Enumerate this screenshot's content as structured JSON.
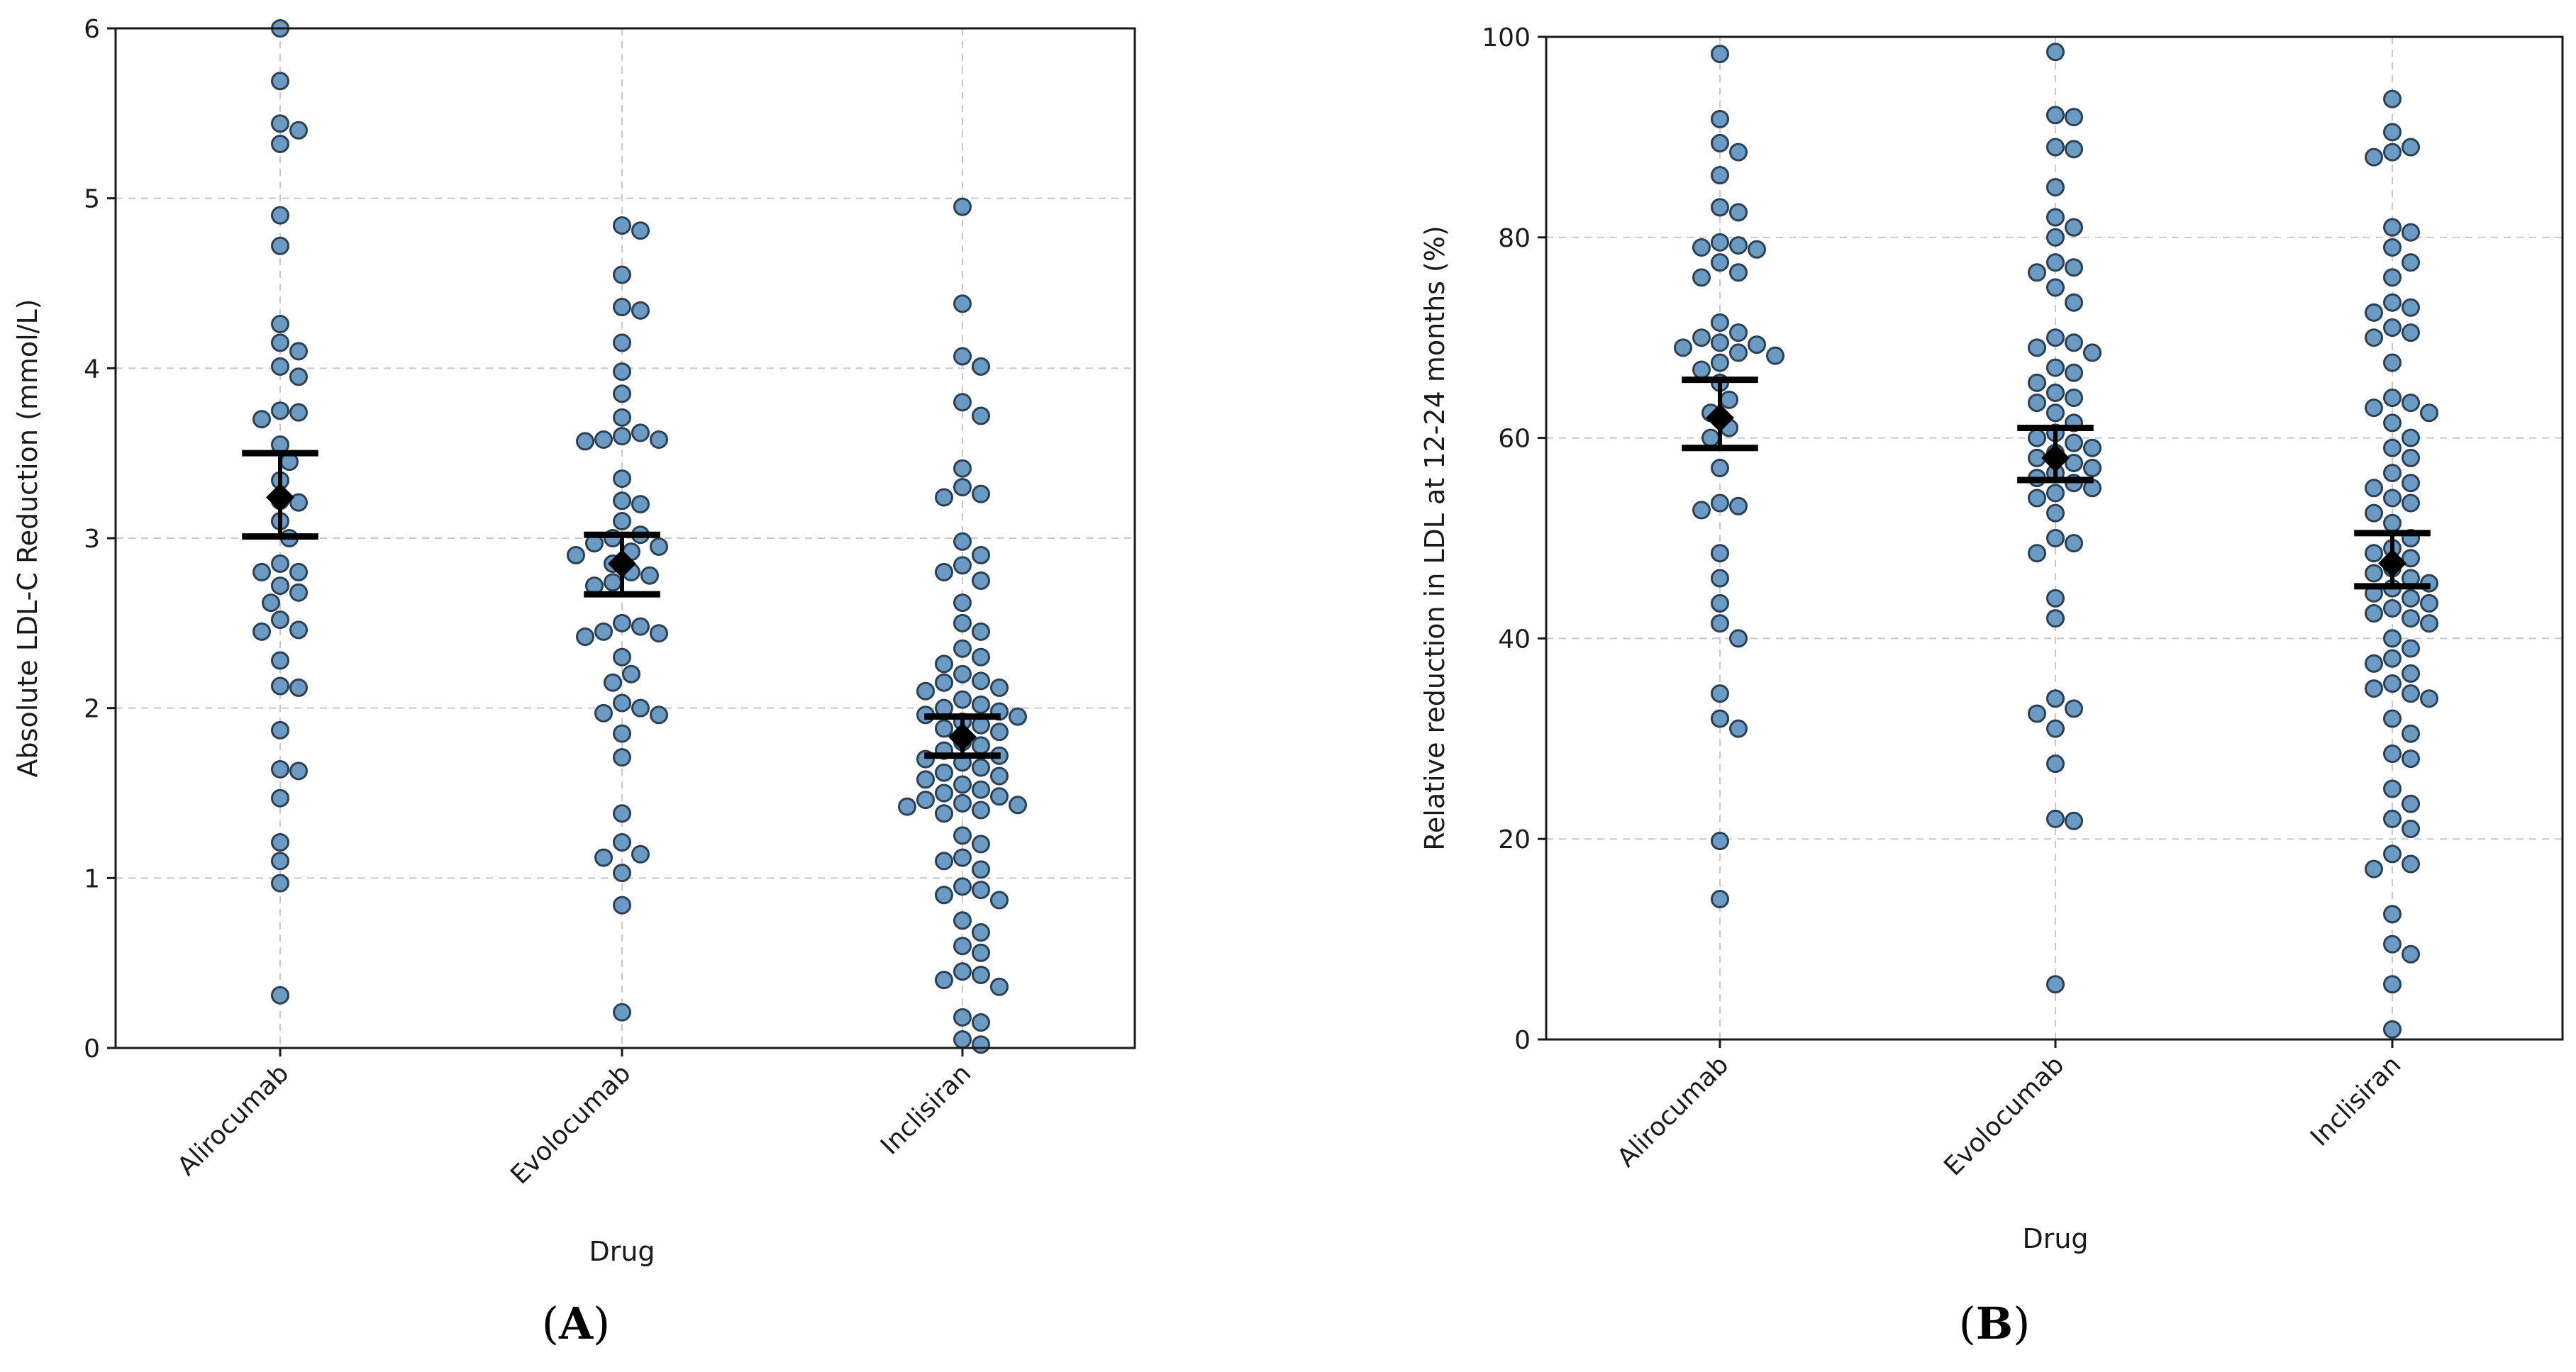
{
  "colors": {
    "point_fill": "#6b9bc3",
    "point_edge": "#2b3f55",
    "mean": "#000000"
  },
  "chart_data": [
    {
      "panel": "A",
      "type": "scatter",
      "subtype": "swarm",
      "xlabel": "Drug",
      "ylabel": "Absolute LDL-C Reduction (mmol/L)",
      "ylim": [
        0,
        6
      ],
      "yticks": [
        0,
        1,
        2,
        3,
        4,
        5,
        6
      ],
      "grid": true,
      "categories": [
        "Alirocumab",
        "Evolocumab",
        "Inclisiran"
      ],
      "series": [
        {
          "name": "Alirocumab",
          "mean": 3.24,
          "ci": [
            3.01,
            3.5
          ],
          "values": [
            6.0,
            5.69,
            5.44,
            5.4,
            5.32,
            4.9,
            4.72,
            4.26,
            4.15,
            4.1,
            4.01,
            3.95,
            3.75,
            3.74,
            3.7,
            3.55,
            3.45,
            3.34,
            3.22,
            3.21,
            3.1,
            3.0,
            2.85,
            2.8,
            2.8,
            2.72,
            2.68,
            2.62,
            2.52,
            2.46,
            2.45,
            2.28,
            2.13,
            2.12,
            1.87,
            1.64,
            1.63,
            1.47,
            1.21,
            1.1,
            0.97,
            0.31
          ]
        },
        {
          "name": "Evolocumab",
          "mean": 2.85,
          "ci": [
            2.67,
            3.02
          ],
          "values": [
            4.84,
            4.81,
            4.55,
            4.36,
            4.34,
            4.15,
            3.98,
            3.85,
            3.71,
            3.62,
            3.6,
            3.58,
            3.58,
            3.57,
            3.35,
            3.22,
            3.2,
            3.1,
            3.02,
            3.0,
            2.97,
            2.95,
            2.92,
            2.9,
            2.85,
            2.8,
            2.78,
            2.74,
            2.72,
            2.5,
            2.48,
            2.45,
            2.44,
            2.42,
            2.3,
            2.2,
            2.15,
            2.03,
            2.0,
            1.97,
            1.96,
            1.85,
            1.71,
            1.38,
            1.21,
            1.14,
            1.12,
            1.03,
            0.84,
            0.21
          ]
        },
        {
          "name": "Inclisiran",
          "mean": 1.83,
          "ci": [
            1.72,
            1.95
          ],
          "values": [
            4.95,
            4.38,
            4.07,
            4.01,
            3.8,
            3.72,
            3.41,
            3.3,
            3.26,
            3.24,
            2.98,
            2.9,
            2.84,
            2.8,
            2.75,
            2.62,
            2.5,
            2.45,
            2.35,
            2.3,
            2.26,
            2.2,
            2.16,
            2.15,
            2.12,
            2.1,
            2.05,
            2.02,
            2.0,
            1.98,
            1.96,
            1.95,
            1.92,
            1.9,
            1.88,
            1.86,
            1.8,
            1.78,
            1.75,
            1.72,
            1.7,
            1.68,
            1.65,
            1.62,
            1.6,
            1.58,
            1.55,
            1.52,
            1.5,
            1.48,
            1.46,
            1.44,
            1.43,
            1.42,
            1.4,
            1.38,
            1.25,
            1.2,
            1.12,
            1.1,
            1.05,
            0.95,
            0.93,
            0.9,
            0.87,
            0.75,
            0.68,
            0.6,
            0.56,
            0.45,
            0.43,
            0.4,
            0.36,
            0.18,
            0.15,
            0.05,
            0.02
          ]
        }
      ]
    },
    {
      "panel": "B",
      "type": "scatter",
      "subtype": "swarm",
      "xlabel": "Drug",
      "ylabel": "Relative reduction in LDL at 12-24 months (%)",
      "ylim": [
        0,
        100
      ],
      "yticks": [
        0,
        20,
        40,
        60,
        80,
        100
      ],
      "grid": true,
      "categories": [
        "Alirocumab",
        "Evolocumab",
        "Inclisiran"
      ],
      "series": [
        {
          "name": "Alirocumab",
          "mean": 62.0,
          "ci": [
            59.0,
            65.8
          ],
          "values": [
            98.3,
            91.8,
            89.4,
            88.5,
            86.2,
            83.0,
            82.5,
            79.5,
            79.2,
            79.0,
            78.8,
            77.5,
            76.5,
            76.0,
            71.5,
            70.5,
            70.0,
            69.5,
            69.3,
            69.0,
            68.5,
            68.2,
            67.5,
            66.8,
            65.5,
            63.8,
            62.5,
            61.0,
            60.0,
            57.0,
            53.5,
            53.2,
            52.8,
            48.5,
            46.0,
            43.5,
            41.5,
            40.0,
            34.5,
            32.0,
            31.0,
            19.8,
            14.0
          ]
        },
        {
          "name": "Evolocumab",
          "mean": 58.0,
          "ci": [
            55.8,
            61.0
          ],
          "values": [
            98.5,
            92.2,
            92.0,
            89.0,
            88.8,
            85.0,
            82.0,
            81.0,
            80.0,
            77.5,
            77.0,
            76.5,
            75.0,
            73.5,
            70.0,
            69.5,
            69.0,
            68.5,
            67.0,
            66.5,
            65.5,
            64.5,
            64.0,
            63.5,
            62.5,
            61.5,
            60.5,
            60.0,
            59.5,
            59.0,
            58.5,
            58.0,
            57.5,
            57.0,
            56.5,
            56.0,
            55.5,
            55.0,
            54.5,
            54.0,
            52.5,
            50.0,
            49.5,
            48.5,
            44.0,
            42.0,
            34.0,
            33.0,
            32.5,
            31.0,
            27.5,
            22.0,
            21.8,
            5.5
          ]
        },
        {
          "name": "Inclisiran",
          "mean": 47.5,
          "ci": [
            45.2,
            50.5
          ],
          "values": [
            93.8,
            90.5,
            89.0,
            88.5,
            88.0,
            81.0,
            80.5,
            79.0,
            77.5,
            76.0,
            73.5,
            73.0,
            72.5,
            71.0,
            70.5,
            70.0,
            67.5,
            64.0,
            63.5,
            63.0,
            62.5,
            61.5,
            60.0,
            59.0,
            58.0,
            56.5,
            55.5,
            55.0,
            54.0,
            53.5,
            52.5,
            51.5,
            50.0,
            49.0,
            48.5,
            48.0,
            47.0,
            46.5,
            46.0,
            45.5,
            45.0,
            44.5,
            44.0,
            43.5,
            43.0,
            42.5,
            42.0,
            41.5,
            40.0,
            39.0,
            38.0,
            37.5,
            36.5,
            35.5,
            35.0,
            34.5,
            34.0,
            32.0,
            30.5,
            28.5,
            28.0,
            25.0,
            23.5,
            22.0,
            21.0,
            18.5,
            17.5,
            17.0,
            12.5,
            9.5,
            8.5,
            5.5,
            1.0
          ]
        }
      ]
    }
  ],
  "panel_labels": [
    "A",
    "B"
  ]
}
